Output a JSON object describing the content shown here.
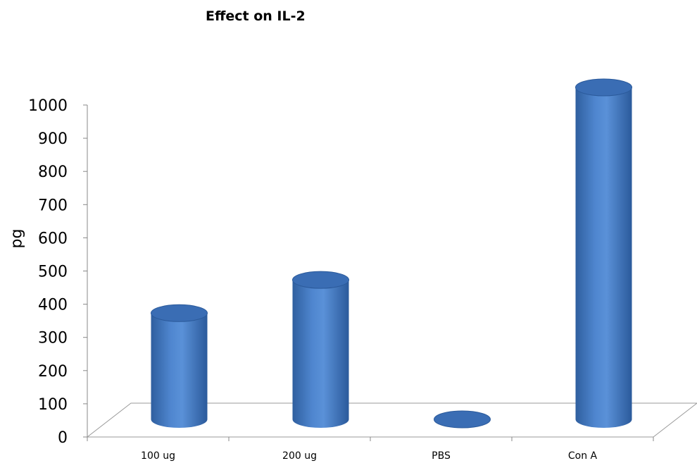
{
  "chart_data": {
    "type": "bar",
    "title": "Effect on IL-2",
    "xlabel": "",
    "ylabel": "pg",
    "categories": [
      "100 ug",
      "200 ug",
      "PBS",
      "Con A"
    ],
    "values": [
      320,
      420,
      0,
      1000
    ],
    "ylim": [
      0,
      1000
    ],
    "yticks": [
      0,
      100,
      200,
      300,
      400,
      500,
      600,
      700,
      800,
      900,
      1000
    ],
    "grid": false,
    "legend": "none",
    "style": "3d-cylinder",
    "colors": {
      "bar": "#4a7ec6",
      "bar_dark": "#2b5a9b",
      "bar_top": "#3a6db4",
      "floor": "#9a9a9a"
    }
  }
}
